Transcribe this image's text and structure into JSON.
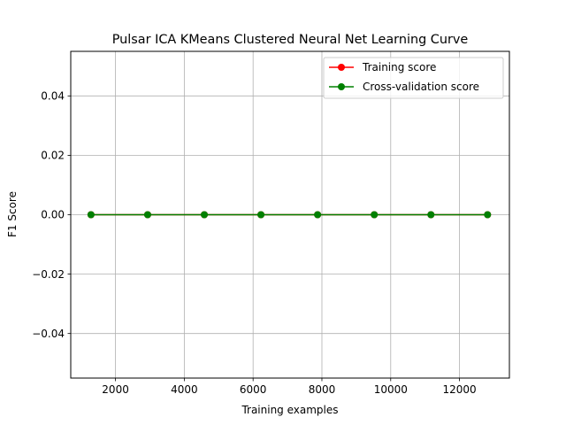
{
  "chart_data": {
    "type": "line",
    "title": "Pulsar ICA KMeans Clustered Neural Net Learning Curve",
    "xlabel": "Training examples",
    "ylabel": "F1 Score",
    "xlim": [
      700,
      13450
    ],
    "ylim": [
      -0.055,
      0.055
    ],
    "xticks": [
      2000,
      4000,
      6000,
      8000,
      10000,
      12000
    ],
    "xtick_labels": [
      "2000",
      "4000",
      "6000",
      "8000",
      "10000",
      "12000"
    ],
    "yticks": [
      -0.04,
      -0.02,
      0.0,
      0.02,
      0.04
    ],
    "ytick_labels": [
      "−0.04",
      "−0.02",
      "0.00",
      "0.02",
      "0.04"
    ],
    "grid": true,
    "legend_position": "top-right",
    "x": [
      1288,
      2935,
      4582,
      6228,
      7875,
      9522,
      11169,
      12815
    ],
    "series": [
      {
        "name": "Training score",
        "color": "#ff0000",
        "values": [
          0,
          0,
          0,
          0,
          0,
          0,
          0,
          0
        ]
      },
      {
        "name": "Cross-validation score",
        "color": "#008000",
        "values": [
          0,
          0,
          0,
          0,
          0,
          0,
          0,
          0
        ]
      }
    ]
  }
}
